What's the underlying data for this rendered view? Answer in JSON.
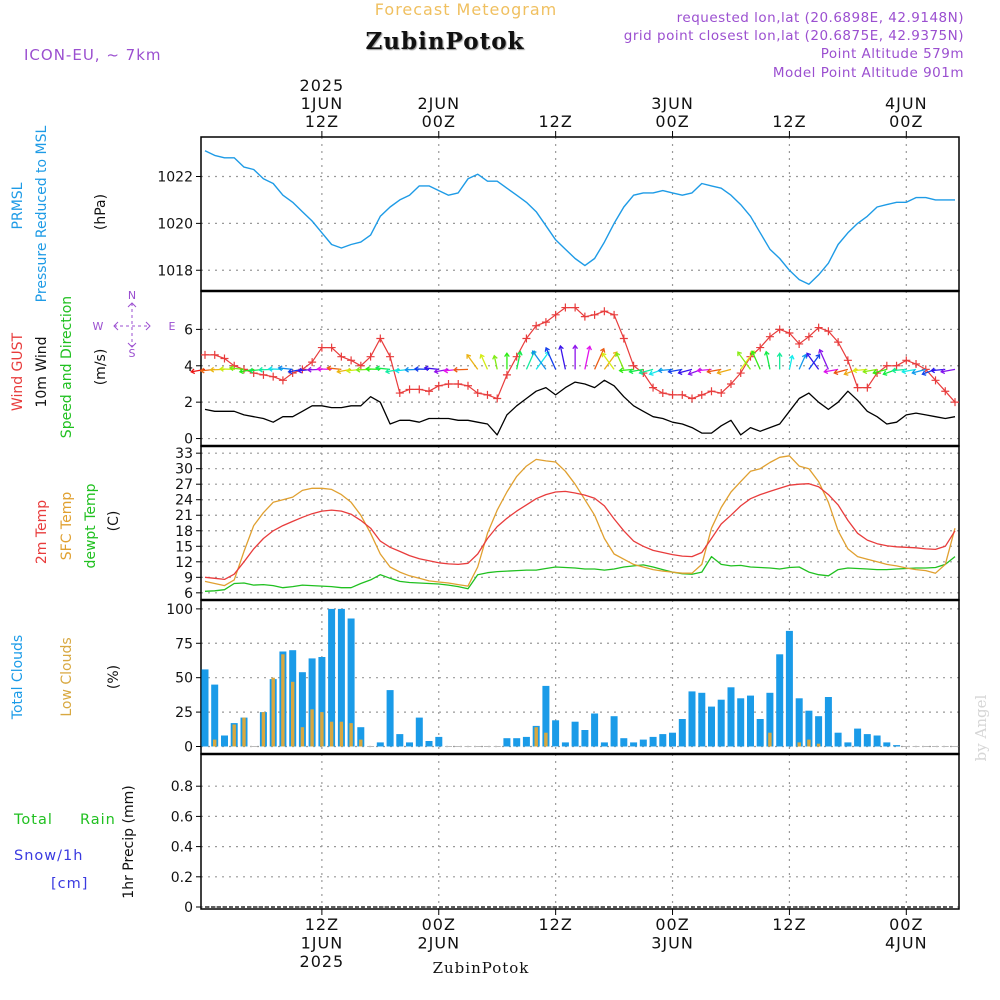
{
  "header": {
    "product": "Forecast Meteogram",
    "station": "ZubinPotok",
    "model": "ICON-EU, ~ 7km",
    "requested": "requested lon,lat (20.6898E, 42.9148N)",
    "closest": "grid point closest lon,lat (20.6875E, 42.9375N)",
    "point_alt": "Point Altitude 579m",
    "model_alt": "Model Point Altitude 901m",
    "footer_station": "ZubinPotok",
    "watermark": "by Angel"
  },
  "time_axis": {
    "top_labels": [
      {
        "h": 12,
        "lines": [
          "2025",
          "1JUN",
          "12Z"
        ]
      },
      {
        "h": 24,
        "lines": [
          "2JUN",
          "00Z"
        ]
      },
      {
        "h": 36,
        "lines": [
          "12Z"
        ]
      },
      {
        "h": 48,
        "lines": [
          "3JUN",
          "00Z"
        ]
      },
      {
        "h": 60,
        "lines": [
          "12Z"
        ]
      },
      {
        "h": 72,
        "lines": [
          "4JUN",
          "00Z"
        ]
      }
    ],
    "bottom_labels": [
      {
        "h": 12,
        "lines": [
          "12Z",
          "1JUN",
          "2025"
        ]
      },
      {
        "h": 24,
        "lines": [
          "00Z",
          "2JUN"
        ]
      },
      {
        "h": 36,
        "lines": [
          "12Z"
        ]
      },
      {
        "h": 48,
        "lines": [
          "00Z",
          "3JUN"
        ]
      },
      {
        "h": 60,
        "lines": [
          "12Z"
        ]
      },
      {
        "h": 72,
        "lines": [
          "00Z",
          "4JUN"
        ]
      }
    ]
  },
  "labels": {
    "p1": [
      "PRMSL",
      "Pressure Reduced to MSL",
      "(hPa)"
    ],
    "p2": [
      "Wind GUST",
      "10m Wind",
      "Speed and Direction",
      "(m/s)"
    ],
    "compass": {
      "n": "N",
      "s": "S",
      "w": "W",
      "e": "E"
    },
    "p3": [
      "2m Temp",
      "SFC Temp",
      "dewpt Temp",
      "(C)"
    ],
    "p4": [
      "Total Clouds",
      "Low Clouds",
      "(%)"
    ],
    "p5": [
      "Total",
      "Rain",
      "Snow/1h",
      "[cm]",
      "1hr Precip (mm)"
    ]
  },
  "colors": {
    "pressure": "#1e9be6",
    "gust": "#e83c3c",
    "wind": "#000000",
    "t2m": "#e83c3c",
    "tsfc": "#e0a030",
    "dewpt": "#20c020",
    "total_clouds": "#1a9be8",
    "low_clouds": "#d8a840",
    "purple": "#9b4fd0",
    "rain_label": "#20c020",
    "snow_label": "#3a3ae0",
    "header_orange": "#f0c060"
  },
  "chart_data": [
    {
      "type": "line",
      "name": "pressure",
      "x_unit": "hours from 2025-06-01 00Z",
      "ylim": [
        1017.2,
        1023.6
      ],
      "yticks": [
        1018,
        1020,
        1022
      ],
      "x": [
        0,
        1,
        2,
        3,
        4,
        5,
        6,
        7,
        8,
        9,
        10,
        11,
        12,
        13,
        14,
        15,
        16,
        17,
        18,
        19,
        20,
        21,
        22,
        23,
        24,
        25,
        26,
        27,
        28,
        29,
        30,
        31,
        32,
        33,
        34,
        35,
        36,
        37,
        38,
        39,
        40,
        41,
        42,
        43,
        44,
        45,
        46,
        47,
        48,
        49,
        50,
        51,
        52,
        53,
        54,
        55,
        56,
        57,
        58,
        59,
        60,
        61,
        62,
        63,
        64,
        65,
        66,
        67,
        68,
        69,
        70,
        71,
        72,
        73,
        74,
        75,
        76,
        77
      ],
      "values": [
        1023.1,
        1022.9,
        1022.8,
        1022.8,
        1022.4,
        1022.3,
        1021.9,
        1021.7,
        1021.2,
        1020.9,
        1020.5,
        1020.1,
        1019.6,
        1019.1,
        1018.95,
        1019.1,
        1019.2,
        1019.5,
        1020.3,
        1020.7,
        1021.0,
        1021.2,
        1021.6,
        1021.6,
        1021.4,
        1021.2,
        1021.3,
        1021.9,
        1022.1,
        1021.8,
        1021.8,
        1021.5,
        1021.2,
        1020.9,
        1020.5,
        1019.9,
        1019.3,
        1018.9,
        1018.5,
        1018.2,
        1018.5,
        1019.2,
        1020.0,
        1020.7,
        1021.2,
        1021.3,
        1021.3,
        1021.4,
        1021.3,
        1021.2,
        1021.3,
        1021.7,
        1021.6,
        1021.5,
        1021.2,
        1020.8,
        1020.3,
        1019.6,
        1018.9,
        1018.5,
        1018.0,
        1017.6,
        1017.4,
        1017.8,
        1018.3,
        1019.1,
        1019.6,
        1020.0,
        1020.3,
        1020.7,
        1020.8,
        1020.9,
        1020.9,
        1021.1,
        1021.1,
        1021.0,
        1021.0,
        1021.0
      ]
    },
    {
      "type": "line",
      "name": "wind",
      "ylim": [
        -0.3,
        8
      ],
      "yticks": [
        0,
        2,
        4,
        6
      ],
      "x": [
        0,
        1,
        2,
        3,
        4,
        5,
        6,
        7,
        8,
        9,
        10,
        11,
        12,
        13,
        14,
        15,
        16,
        17,
        18,
        19,
        20,
        21,
        22,
        23,
        24,
        25,
        26,
        27,
        28,
        29,
        30,
        31,
        32,
        33,
        34,
        35,
        36,
        37,
        38,
        39,
        40,
        41,
        42,
        43,
        44,
        45,
        46,
        47,
        48,
        49,
        50,
        51,
        52,
        53,
        54,
        55,
        56,
        57,
        58,
        59,
        60,
        61,
        62,
        63,
        64,
        65,
        66,
        67,
        68,
        69,
        70,
        71,
        72,
        73,
        74,
        75,
        76,
        77
      ],
      "gust": [
        4.6,
        4.6,
        4.4,
        4.0,
        3.8,
        3.6,
        3.5,
        3.4,
        3.2,
        3.6,
        3.8,
        4.2,
        5.0,
        5.0,
        4.5,
        4.3,
        4.0,
        4.5,
        5.5,
        4.5,
        2.5,
        2.7,
        2.7,
        2.6,
        2.9,
        3.0,
        3.0,
        2.9,
        2.5,
        2.4,
        2.2,
        3.5,
        4.5,
        5.5,
        6.2,
        6.4,
        6.8,
        7.2,
        7.2,
        6.7,
        6.8,
        7.0,
        6.8,
        5.5,
        4.0,
        3.6,
        2.8,
        2.5,
        2.4,
        2.4,
        2.2,
        2.4,
        2.6,
        2.5,
        3.0,
        3.6,
        4.5,
        5.0,
        5.6,
        6.0,
        5.8,
        5.2,
        5.6,
        6.1,
        5.9,
        5.3,
        4.3,
        2.8,
        2.8,
        3.6,
        4.0,
        4.0,
        4.3,
        4.1,
        3.8,
        3.2,
        2.6,
        2.0
      ],
      "wind": [
        1.6,
        1.5,
        1.5,
        1.5,
        1.3,
        1.2,
        1.1,
        0.9,
        1.2,
        1.2,
        1.5,
        1.8,
        1.8,
        1.7,
        1.7,
        1.8,
        1.8,
        2.3,
        2.0,
        0.8,
        1.0,
        1.0,
        0.9,
        1.1,
        1.1,
        1.1,
        1.0,
        1.0,
        0.9,
        0.8,
        0.2,
        1.3,
        1.8,
        2.2,
        2.6,
        2.8,
        2.4,
        2.8,
        3.1,
        3.0,
        2.8,
        3.2,
        2.9,
        2.3,
        1.8,
        1.5,
        1.2,
        1.1,
        0.9,
        0.8,
        0.6,
        0.3,
        0.3,
        0.7,
        1.0,
        0.2,
        0.6,
        0.4,
        0.6,
        0.8,
        1.5,
        2.2,
        2.5,
        2.0,
        1.6,
        2.0,
        2.6,
        2.1,
        1.5,
        1.2,
        0.8,
        0.9,
        1.3,
        1.4,
        1.3,
        1.2,
        1.1,
        1.2
      ]
    },
    {
      "type": "line",
      "name": "temperature",
      "ylim": [
        5,
        34
      ],
      "yticks": [
        6,
        9,
        12,
        15,
        18,
        21,
        24,
        27,
        30,
        33
      ],
      "x": [
        0,
        1,
        2,
        3,
        4,
        5,
        6,
        7,
        8,
        9,
        10,
        11,
        12,
        13,
        14,
        15,
        16,
        17,
        18,
        19,
        20,
        21,
        22,
        23,
        24,
        25,
        26,
        27,
        28,
        29,
        30,
        31,
        32,
        33,
        34,
        35,
        36,
        37,
        38,
        39,
        40,
        41,
        42,
        43,
        44,
        45,
        46,
        47,
        48,
        49,
        50,
        51,
        52,
        53,
        54,
        55,
        56,
        57,
        58,
        59,
        60,
        61,
        62,
        63,
        64,
        65,
        66,
        67,
        68,
        69,
        70,
        71,
        72,
        73,
        74,
        75,
        76,
        77
      ],
      "t2m": [
        9.0,
        8.8,
        8.6,
        9.6,
        12.0,
        14.5,
        16.5,
        18.0,
        19.0,
        19.8,
        20.6,
        21.3,
        21.8,
        22.0,
        21.8,
        21.2,
        20.0,
        18.5,
        16.0,
        14.8,
        14.0,
        13.2,
        12.6,
        12.2,
        11.8,
        11.6,
        11.5,
        11.7,
        13.5,
        16.5,
        18.8,
        20.4,
        21.8,
        23.0,
        24.2,
        25.0,
        25.5,
        25.6,
        25.3,
        24.9,
        24.3,
        22.8,
        20.3,
        18.0,
        16.0,
        15.0,
        14.2,
        13.8,
        13.4,
        13.1,
        13.0,
        13.8,
        16.5,
        19.3,
        21.0,
        22.8,
        24.2,
        25.0,
        25.6,
        26.2,
        26.8,
        27.0,
        27.1,
        26.5,
        25.0,
        23.0,
        20.0,
        17.5,
        16.2,
        15.5,
        15.1,
        14.9,
        14.8,
        14.7,
        14.5,
        14.4,
        15.0,
        18.0
      ],
      "tsfc": [
        8.2,
        7.8,
        7.4,
        8.5,
        14.0,
        19.0,
        21.5,
        23.5,
        24.0,
        24.5,
        25.8,
        26.2,
        26.2,
        26.0,
        25.0,
        23.5,
        21.0,
        17.5,
        13.5,
        11.0,
        10.0,
        9.3,
        8.8,
        8.3,
        8.1,
        7.9,
        7.6,
        7.3,
        11.0,
        17.5,
        22.0,
        25.5,
        28.5,
        30.5,
        31.8,
        31.5,
        31.3,
        29.5,
        27.0,
        24.0,
        21.0,
        16.5,
        13.5,
        12.5,
        11.5,
        11.0,
        10.5,
        10.2,
        10.0,
        9.8,
        9.8,
        11.5,
        18.5,
        22.5,
        25.5,
        27.5,
        29.5,
        30.0,
        31.2,
        32.2,
        32.5,
        30.5,
        30.0,
        27.5,
        23.5,
        18.0,
        14.5,
        13.0,
        12.5,
        12.0,
        11.5,
        11.2,
        10.8,
        10.5,
        10.3,
        9.8,
        11.5,
        18.5
      ],
      "dewpt": [
        6.3,
        6.4,
        6.6,
        7.8,
        7.9,
        7.5,
        7.6,
        7.4,
        7.0,
        7.2,
        7.5,
        7.4,
        7.3,
        7.2,
        7.0,
        7.0,
        7.8,
        8.5,
        9.5,
        8.8,
        8.2,
        8.0,
        7.9,
        7.8,
        7.7,
        7.5,
        7.2,
        6.8,
        9.5,
        9.9,
        10.1,
        10.2,
        10.3,
        10.4,
        10.4,
        10.7,
        11.0,
        10.9,
        10.8,
        10.6,
        10.6,
        10.4,
        10.6,
        11.0,
        11.2,
        11.4,
        11.0,
        10.5,
        10.0,
        9.7,
        9.6,
        10.0,
        13.0,
        11.5,
        11.2,
        11.3,
        11.0,
        10.9,
        10.8,
        10.6,
        10.9,
        11.0,
        10.0,
        9.5,
        9.3,
        10.5,
        10.8,
        10.7,
        10.6,
        10.5,
        10.5,
        10.6,
        10.7,
        10.8,
        10.8,
        10.9,
        11.5,
        13.0
      ]
    },
    {
      "type": "bar",
      "name": "clouds",
      "ylim": [
        -4,
        105
      ],
      "yticks": [
        0,
        25,
        50,
        75,
        100
      ],
      "x": [
        0,
        1,
        2,
        3,
        4,
        5,
        6,
        7,
        8,
        9,
        10,
        11,
        12,
        13,
        14,
        15,
        16,
        17,
        18,
        19,
        20,
        21,
        22,
        23,
        24,
        25,
        26,
        27,
        28,
        29,
        30,
        31,
        32,
        33,
        34,
        35,
        36,
        37,
        38,
        39,
        40,
        41,
        42,
        43,
        44,
        45,
        46,
        47,
        48,
        49,
        50,
        51,
        52,
        53,
        54,
        55,
        56,
        57,
        58,
        59,
        60,
        61,
        62,
        63,
        64,
        65,
        66,
        67,
        68,
        69,
        70,
        71,
        72,
        73,
        74,
        75,
        76,
        77
      ],
      "total": [
        56,
        45,
        8,
        17,
        21,
        0,
        25,
        49,
        69,
        70,
        54,
        64,
        65,
        100,
        100,
        93,
        14,
        0,
        3,
        41,
        9,
        3,
        21,
        4,
        7,
        0,
        0,
        0,
        0,
        0,
        0,
        6,
        6,
        7,
        15,
        44,
        19,
        3,
        18,
        12,
        24,
        3,
        22,
        6,
        3,
        5,
        7,
        9,
        10,
        20,
        40,
        39,
        29,
        34,
        43,
        35,
        37,
        20,
        39,
        67,
        84,
        35,
        26,
        22,
        36,
        10,
        3,
        13,
        9,
        8,
        3,
        1,
        0,
        0,
        0,
        0,
        0,
        0
      ],
      "low": [
        0,
        5,
        0,
        16,
        21,
        0,
        25,
        50,
        67,
        47,
        14,
        27,
        25,
        18,
        18,
        17,
        5,
        0,
        0,
        0,
        0,
        0,
        0,
        0,
        0,
        0,
        0,
        0,
        0,
        0,
        0,
        0,
        0,
        0,
        14,
        10,
        0,
        0,
        0,
        0,
        0,
        0,
        0,
        0,
        0,
        0,
        0,
        0,
        0,
        0,
        0,
        0,
        0,
        0,
        0,
        0,
        0,
        0,
        10,
        0,
        0,
        3,
        5,
        2,
        0,
        0,
        0,
        0,
        0,
        0,
        0,
        0,
        0,
        0,
        0,
        0,
        0,
        0
      ]
    },
    {
      "type": "line",
      "name": "precip",
      "ylim": [
        0,
        1
      ],
      "yticks": [
        0,
        0.2,
        0.4,
        0.6,
        0.8
      ],
      "x": [
        0,
        77
      ],
      "values": [
        0,
        0
      ]
    }
  ]
}
